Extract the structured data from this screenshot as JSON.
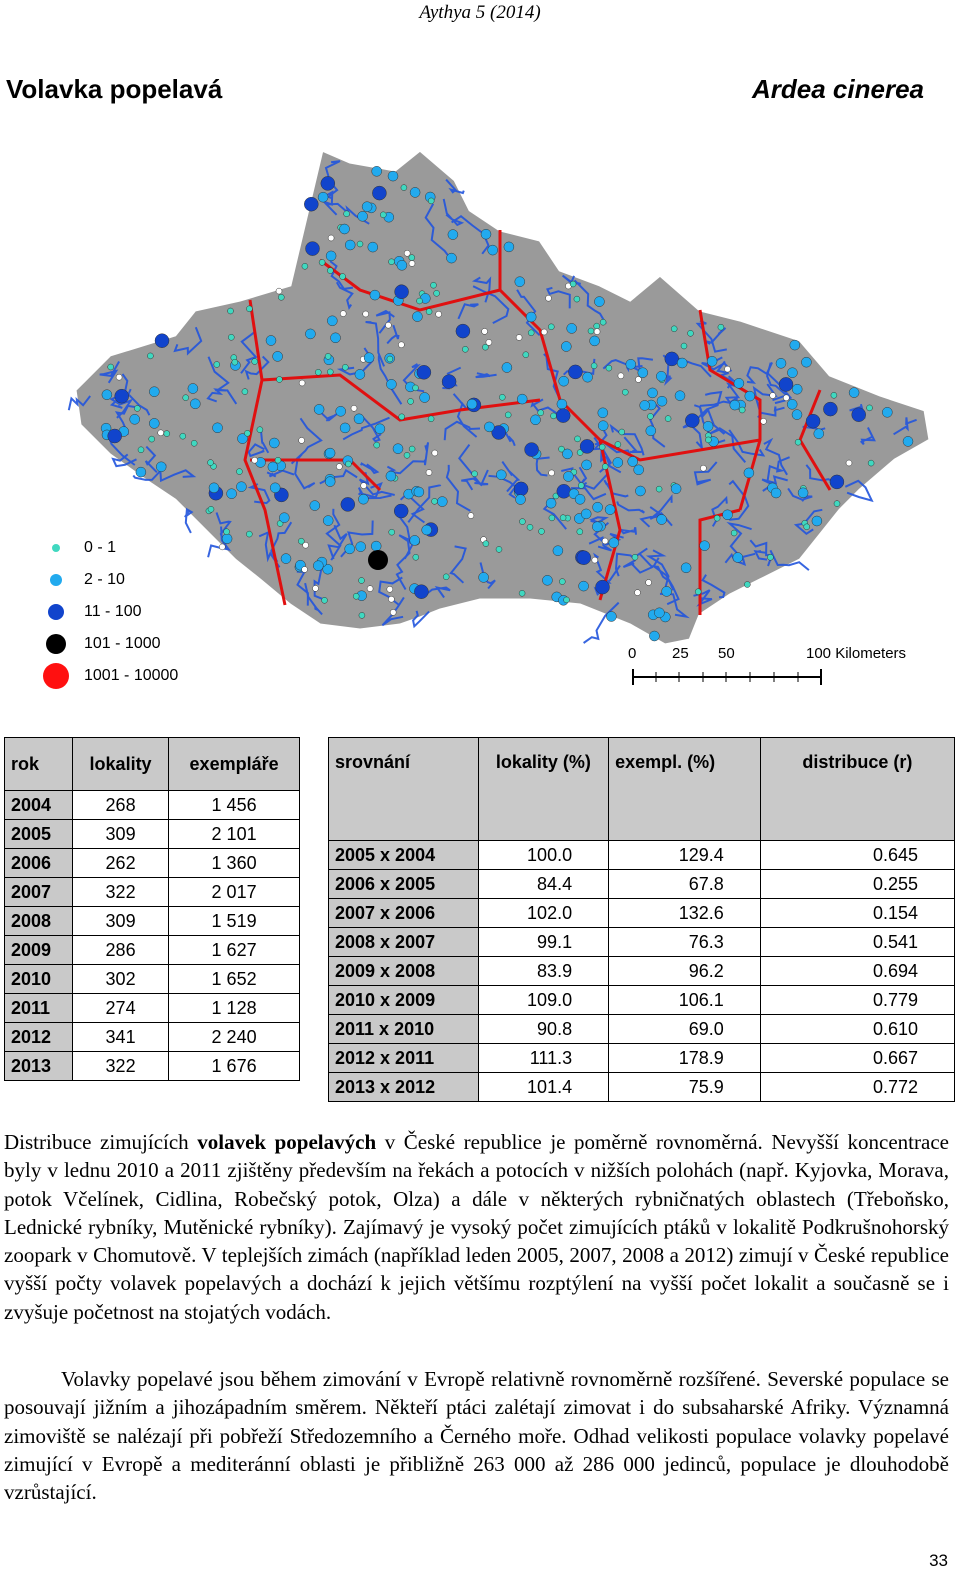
{
  "header": {
    "journal": "Aythya 5 (2014)"
  },
  "titles": {
    "czech": "Volavka popelavá",
    "latin": "Ardea cinerea"
  },
  "map": {
    "colors": {
      "land": "#9a9a9a",
      "rivers": "#2255dd",
      "borders": "#e01010",
      "outline": "#ffffff"
    },
    "legend": [
      {
        "label": "0 - 1",
        "color": "#40d8c0",
        "size": "small"
      },
      {
        "label": "2 - 10",
        "color": "#22aaee",
        "size": "medium"
      },
      {
        "label": "11 - 100",
        "color": "#1144cc",
        "size": "large"
      },
      {
        "label": "101 - 1000",
        "color": "#000000",
        "size": "xlarge"
      },
      {
        "label": "1001 - 10000",
        "color": "#ff1010",
        "size": "xxlarge"
      }
    ],
    "scale": {
      "ticks": [
        "0",
        "25",
        "50",
        "100 Kilometers"
      ]
    }
  },
  "table1": {
    "headers": [
      "rok",
      "lokality",
      "exempláře"
    ],
    "rows": [
      [
        "2004",
        "268",
        "1 456"
      ],
      [
        "2005",
        "309",
        "2 101"
      ],
      [
        "2006",
        "262",
        "1 360"
      ],
      [
        "2007",
        "322",
        "2 017"
      ],
      [
        "2008",
        "309",
        "1 519"
      ],
      [
        "2009",
        "286",
        "1 627"
      ],
      [
        "2010",
        "302",
        "1 652"
      ],
      [
        "2011",
        "274",
        "1 128"
      ],
      [
        "2012",
        "341",
        "2 240"
      ],
      [
        "2013",
        "322",
        "1 676"
      ]
    ]
  },
  "table2": {
    "headers": [
      "srovnání",
      "lokality (%)",
      "exempl. (%)",
      "distribuce (r)"
    ],
    "rows": [
      [
        "2005 x 2004",
        "100.0",
        "129.4",
        "0.645"
      ],
      [
        "2006 x 2005",
        "84.4",
        "67.8",
        "0.255"
      ],
      [
        "2007 x 2006",
        "102.0",
        "132.6",
        "0.154"
      ],
      [
        "2008 x 2007",
        "99.1",
        "76.3",
        "0.541"
      ],
      [
        "2009 x 2008",
        "83.9",
        "96.2",
        "0.694"
      ],
      [
        "2010 x 2009",
        "109.0",
        "106.1",
        "0.779"
      ],
      [
        "2011 x 2010",
        "90.8",
        "69.0",
        "0.610"
      ],
      [
        "2012 x 2011",
        "111.3",
        "178.9",
        "0.667"
      ],
      [
        "2013 x 2012",
        "101.4",
        "75.9",
        "0.772"
      ]
    ]
  },
  "text": {
    "p1_a": "Distribuce zimujících ",
    "p1_bold": "volavek popelavých",
    "p1_b": " v České republice je poměrně rovnoměrná. Nevyšší koncentrace byly v lednu 2010 a 2011 zjištěny především na řekách a potocích v nižších polohách (např. Kyjovka, Morava, potok Včelínek, Cidlina, Robečský potok, Olza) a dále v některých rybničnatých oblastech (Třeboňsko, Lednické rybníky, Mutěnické rybníky). Zajímavý je vysoký počet zimujících ptáků v lokalitě Podkrušnohorský zoopark v Chomutově. V teplejších zimách (například leden 2005, 2007, 2008 a 2012) zimují v České republice vyšší počty volavek popelavých a dochází k jejich většímu rozptýlení na vyšší počet lokalit a současně se i zvyšuje početnost na stojatých vodách.",
    "p2": "Volavky popelavé jsou během zimování v Evropě relativně rovnoměrně rozšířené. Severské populace se posouvají jižním a jihozápadním směrem. Někteří ptáci zalétají zimovat i do subsaharské Afriky. Významná zimoviště se nalézají při pobřeží Středozemního a Černého moře. Odhad velikosti populace volavky popelavé zimující v Evropě a mediteránní oblasti je přibližně 263 000 až 286 000 jedinců, populace je dlouhodobě vzrůstající."
  },
  "page_number": "33"
}
